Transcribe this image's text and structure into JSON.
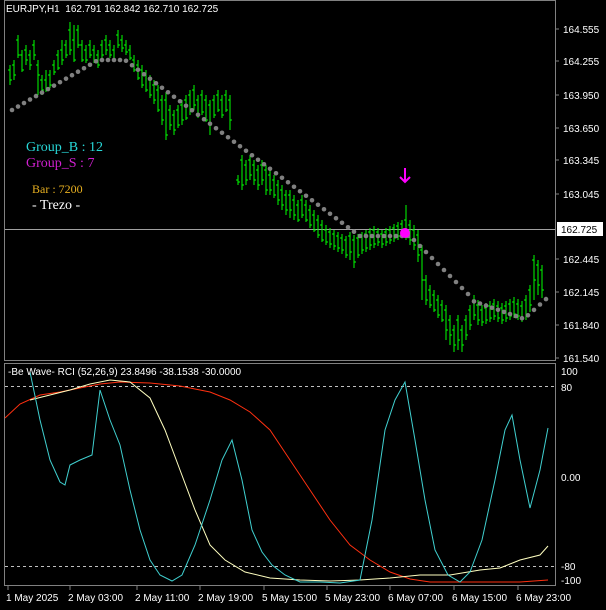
{
  "header": {
    "symbol": "EURJPY,H1",
    "ohlc": "162.791 162.842 162.710 162.725"
  },
  "overlay": {
    "group_b": "Group_B : 12",
    "group_s": "Group_S : 7",
    "bar": "Bar : 7200",
    "trezo": "- Trezo -"
  },
  "indicator": {
    "label": "-Be Wave- RCI (52,26,9) 23.8496 -38.1538 -30.0000"
  },
  "price_axis": {
    "ticks": [
      "164.555",
      "164.255",
      "163.950",
      "163.650",
      "163.345",
      "163.045",
      "162.445",
      "162.145",
      "161.840",
      "161.540"
    ],
    "current": "162.725"
  },
  "rci_axis": {
    "ticks": [
      "100",
      "80",
      "0.00",
      "-80",
      "-100"
    ]
  },
  "time_axis": {
    "ticks": [
      "1 May 2025",
      "2 May 03:00",
      "2 May 11:00",
      "2 May 19:00",
      "5 May 15:00",
      "5 May 23:00",
      "6 May 07:00",
      "6 May 15:00",
      "6 May 23:00"
    ]
  },
  "colors": {
    "candle": "#00ff00",
    "trend_dots": "#808080",
    "signal": "#ff00ff",
    "rci_short": "#40d0d0",
    "rci_mid": "#ffffc0",
    "rci_long": "#ff3010",
    "group_b": "#27d8d8",
    "group_s": "#d020d0",
    "bar": "#e8b020"
  }
}
